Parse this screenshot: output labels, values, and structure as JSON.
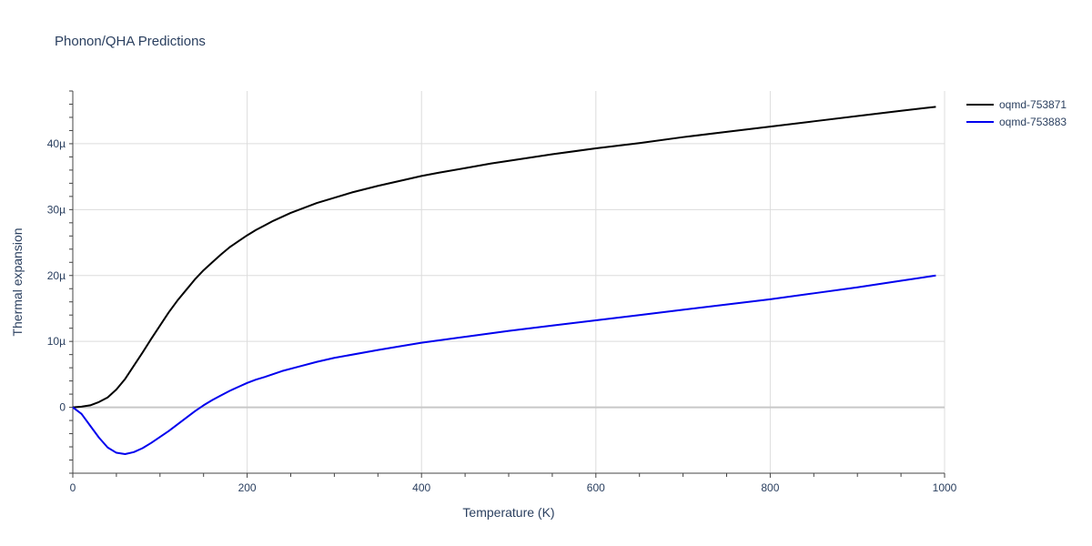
{
  "chart_data": {
    "type": "line",
    "title": "Phonon/QHA Predictions",
    "xlabel": "Temperature (K)",
    "ylabel": "Thermal expansion",
    "xlim": [
      0,
      1000
    ],
    "ylim": [
      -1e-05,
      4.8e-05
    ],
    "x_ticks": [
      {
        "value": 0,
        "label": "0"
      },
      {
        "value": 200,
        "label": "200"
      },
      {
        "value": 400,
        "label": "400"
      },
      {
        "value": 600,
        "label": "600"
      },
      {
        "value": 800,
        "label": "800"
      },
      {
        "value": 1000,
        "label": "1000"
      }
    ],
    "y_ticks": [
      {
        "value": 0,
        "label": "0"
      },
      {
        "value": 1e-05,
        "label": "10µ"
      },
      {
        "value": 2e-05,
        "label": "20µ"
      },
      {
        "value": 3e-05,
        "label": "30µ"
      },
      {
        "value": 4e-05,
        "label": "40µ"
      }
    ],
    "grid": true,
    "legend_position": "top-right",
    "series": [
      {
        "name": "oqmd-753871",
        "color": "#000000",
        "x": [
          0,
          10,
          20,
          30,
          40,
          50,
          60,
          70,
          80,
          90,
          100,
          110,
          120,
          130,
          140,
          150,
          160,
          170,
          180,
          190,
          200,
          210,
          220,
          230,
          240,
          250,
          260,
          280,
          300,
          320,
          350,
          380,
          400,
          420,
          450,
          480,
          500,
          550,
          600,
          650,
          700,
          750,
          800,
          850,
          900,
          950,
          990
        ],
        "y": [
          0,
          1e-07,
          3e-07,
          8e-07,
          1.5e-06,
          2.7e-06,
          4.3e-06,
          6.3e-06,
          8.3e-06,
          1.04e-05,
          1.24e-05,
          1.44e-05,
          1.62e-05,
          1.78e-05,
          1.94e-05,
          2.08e-05,
          2.2e-05,
          2.32e-05,
          2.43e-05,
          2.52e-05,
          2.61e-05,
          2.69e-05,
          2.76e-05,
          2.83e-05,
          2.89e-05,
          2.95e-05,
          3e-05,
          3.1e-05,
          3.18e-05,
          3.26e-05,
          3.36e-05,
          3.45e-05,
          3.51e-05,
          3.56e-05,
          3.63e-05,
          3.7e-05,
          3.74e-05,
          3.84e-05,
          3.93e-05,
          4.01e-05,
          4.1e-05,
          4.18e-05,
          4.26e-05,
          4.34e-05,
          4.42e-05,
          4.5e-05,
          4.56e-05
        ]
      },
      {
        "name": "oqmd-753883",
        "color": "#0000ee",
        "x": [
          0,
          10,
          20,
          30,
          40,
          50,
          60,
          70,
          80,
          90,
          100,
          110,
          120,
          130,
          140,
          150,
          160,
          170,
          180,
          190,
          200,
          210,
          220,
          240,
          260,
          280,
          300,
          350,
          400,
          450,
          500,
          550,
          600,
          650,
          700,
          750,
          800,
          850,
          900,
          950,
          990
        ],
        "y": [
          0,
          -1e-06,
          -2.8e-06,
          -4.6e-06,
          -6.1e-06,
          -6.9e-06,
          -7.1e-06,
          -6.8e-06,
          -6.2e-06,
          -5.4e-06,
          -4.5e-06,
          -3.6e-06,
          -2.6e-06,
          -1.6e-06,
          -6e-07,
          3e-07,
          1.1e-06,
          1.8e-06,
          2.5e-06,
          3.1e-06,
          3.7e-06,
          4.2e-06,
          4.6e-06,
          5.5e-06,
          6.2e-06,
          6.9e-06,
          7.5e-06,
          8.7e-06,
          9.8e-06,
          1.07e-05,
          1.16e-05,
          1.24e-05,
          1.32e-05,
          1.4e-05,
          1.48e-05,
          1.56e-05,
          1.64e-05,
          1.73e-05,
          1.82e-05,
          1.92e-05,
          2e-05
        ]
      }
    ]
  }
}
